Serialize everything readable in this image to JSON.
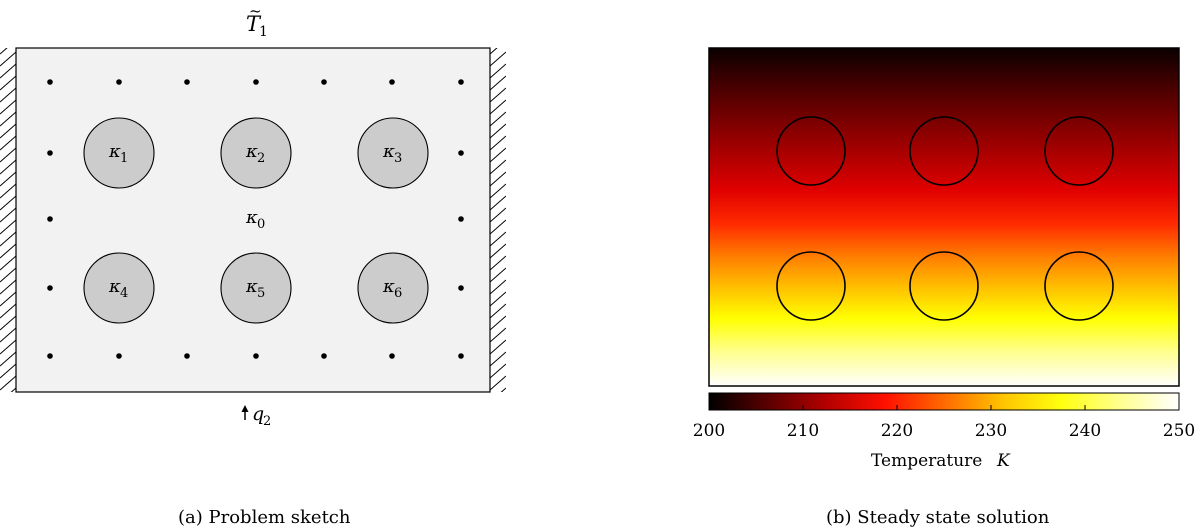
{
  "panel_a": {
    "caption": "(a) Problem sketch",
    "top_boundary": {
      "symbol": "T",
      "accent": "~",
      "subscript": "1"
    },
    "bottom_boundary": {
      "symbol": "q",
      "subscript": "2"
    },
    "matrix_label": {
      "symbol": "κ",
      "subscript": "0"
    },
    "inclusions": [
      {
        "symbol": "κ",
        "subscript": "1"
      },
      {
        "symbol": "κ",
        "subscript": "2"
      },
      {
        "symbol": "κ",
        "subscript": "3"
      },
      {
        "symbol": "κ",
        "subscript": "4"
      },
      {
        "symbol": "κ",
        "subscript": "5"
      },
      {
        "symbol": "κ",
        "subscript": "6"
      }
    ],
    "colors": {
      "domain_fill": "#f2f2f2",
      "inclusion_fill": "#cccccc"
    }
  },
  "panel_b": {
    "caption": "(b) Steady state solution",
    "colorbar": {
      "ticks": [
        "200",
        "210",
        "220",
        "230",
        "240",
        "250"
      ],
      "label_text": "Temperature",
      "label_symbol": "K",
      "range": [
        200,
        250
      ],
      "colormap": "hot"
    }
  }
}
